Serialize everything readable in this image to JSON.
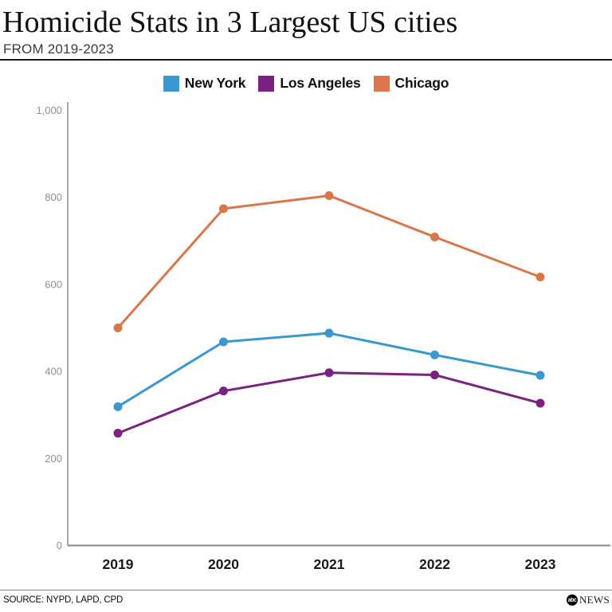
{
  "header": {
    "title": "Homicide Stats in 3 Largest US cities",
    "subtitle": "FROM 2019-2023"
  },
  "legend": [
    {
      "label": "New York",
      "color": "#3A97D0"
    },
    {
      "label": "Los Angeles",
      "color": "#7B2182"
    },
    {
      "label": "Chicago",
      "color": "#D9774A"
    }
  ],
  "chart_data": {
    "type": "line",
    "title": "Homicide Stats in 3 Largest US cities",
    "subtitle": "FROM 2019-2023",
    "categories": [
      "2019",
      "2020",
      "2021",
      "2022",
      "2023"
    ],
    "series": [
      {
        "name": "New York",
        "color": "#3A97D0",
        "values": [
          319,
          468,
          488,
          438,
          391
        ]
      },
      {
        "name": "Los Angeles",
        "color": "#7B2182",
        "values": [
          258,
          355,
          397,
          392,
          327
        ]
      },
      {
        "name": "Chicago",
        "color": "#D9774A",
        "values": [
          500,
          774,
          804,
          709,
          617
        ]
      }
    ],
    "xlabel": "",
    "ylabel": "",
    "ylim": [
      0,
      1000
    ],
    "yticks": [
      0,
      200,
      400,
      600,
      800,
      1000
    ],
    "ytick_labels": [
      "0",
      "200",
      "400",
      "600",
      "800",
      "1,000"
    ],
    "grid": false,
    "legend_position": "top",
    "axis_color": "#8a8a8a",
    "tick_label_color": "#8f8f8f",
    "x_label_color": "#1a1a1a"
  },
  "footer": {
    "source": "SOURCE: NYPD, LAPD, CPD",
    "logo_abc": "abc",
    "logo_news": "NEWS"
  }
}
